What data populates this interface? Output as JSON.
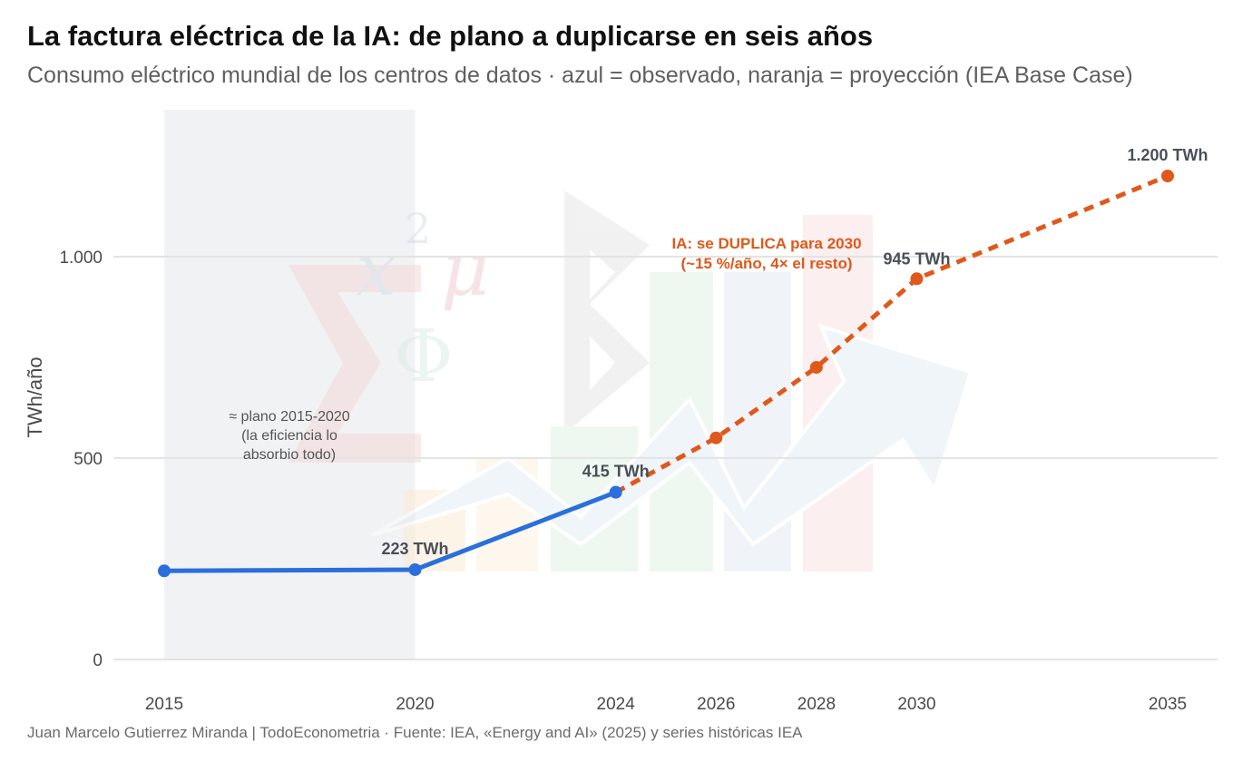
{
  "header": {
    "title": "La factura eléctrica de la IA: de plano a duplicarse en seis años",
    "subtitle": "Consumo eléctrico mundial de los centros de datos · azul = observado, naranja = proyección (IEA Base Case)"
  },
  "footer": {
    "caption": "Juan Marcelo Gutierrez Miranda | TodoEconometria  ·  Fuente: IEA, «Energy and AI» (2025) y series históricas IEA"
  },
  "colors": {
    "observed": "#2a6fdb",
    "projection": "#e0581a",
    "shade": "#e5e7ea",
    "grid": "#e3e3e3"
  },
  "chart_data": {
    "type": "line",
    "title": "La factura eléctrica de la IA: de plano a duplicarse en seis años",
    "xlabel": "",
    "ylabel": "TWh/año",
    "xlim": [
      2015,
      2035
    ],
    "ylim": [
      0,
      1200
    ],
    "x_ticks": [
      2015,
      2020,
      2024,
      2026,
      2028,
      2030,
      2035
    ],
    "x_tick_labels": [
      "2015",
      "2020",
      "2024",
      "2026",
      "2028",
      "2030",
      "2035"
    ],
    "y_ticks": [
      0,
      500,
      1000
    ],
    "y_tick_labels": [
      "0",
      "500",
      "1.000"
    ],
    "grid": "horizontal",
    "series": [
      {
        "name": "observado",
        "style": "solid",
        "x": [
          2015,
          2020,
          2024
        ],
        "y": [
          220,
          223,
          415
        ]
      },
      {
        "name": "proyección (IEA Base Case)",
        "style": "dashed",
        "x": [
          2024,
          2026,
          2028,
          2030,
          2035
        ],
        "y": [
          415,
          550,
          725,
          945,
          1200
        ]
      }
    ],
    "data_labels": [
      {
        "x": 2020,
        "y": 223,
        "text": "223 TWh"
      },
      {
        "x": 2024,
        "y": 415,
        "text": "415 TWh"
      },
      {
        "x": 2030,
        "y": 945,
        "text": "945 TWh"
      },
      {
        "x": 2035,
        "y": 1200,
        "text": "1.200 TWh"
      }
    ],
    "shaded_region": {
      "x": [
        2015,
        2020
      ]
    },
    "annotations": [
      {
        "lines": [
          "≈ plano 2015-2020",
          "(la eficiencia lo",
          "absorbio todo)"
        ]
      },
      {
        "lines": [
          "IA: se DUPLICA para 2030",
          "(~15 %/año, 4× el resto)"
        ]
      }
    ]
  }
}
